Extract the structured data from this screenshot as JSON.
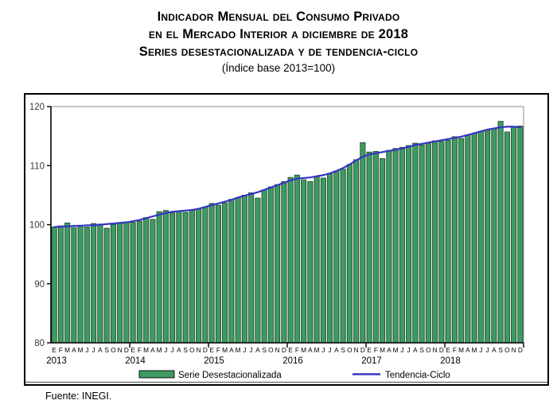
{
  "title": {
    "line1": "Indicador Mensual del Consumo Privado",
    "line2": "en el Mercado Interior a diciembre de 2018",
    "line3": "Series desestacionalizada y de tendencia-ciclo",
    "subtitle": "(Índice base 2013=100)"
  },
  "source": "Fuente: INEGI.",
  "chart_data": {
    "type": "bar",
    "title": "Indicador Mensual del Consumo Privado en el Mercado Interior a diciembre de 2018",
    "ylabel": "",
    "xlabel": "",
    "ylim": [
      80,
      120
    ],
    "yticks": [
      80,
      90,
      100,
      110,
      120
    ],
    "grid": false,
    "legend_position": "bottom",
    "month_labels": [
      "E",
      "F",
      "M",
      "A",
      "M",
      "J",
      "J",
      "A",
      "S",
      "O",
      "N",
      "D"
    ],
    "years": [
      "2013",
      "2014",
      "2015",
      "2016",
      "2017",
      "2018"
    ],
    "series": [
      {
        "name": "Serie Desestacionalizada",
        "type": "bar",
        "color": "#3E9A62",
        "border_color": "#16421F",
        "values": [
          99.6,
          99.8,
          100.3,
          99.5,
          99.9,
          99.6,
          100.2,
          100.1,
          99.4,
          100.0,
          100.2,
          100.4,
          100.4,
          100.6,
          101.2,
          100.9,
          102.2,
          102.4,
          102.0,
          102.3,
          102.1,
          102.4,
          102.7,
          103.0,
          103.6,
          103.3,
          103.7,
          104.3,
          104.6,
          105.0,
          105.4,
          104.5,
          105.9,
          106.4,
          106.8,
          107.3,
          108.0,
          108.4,
          107.6,
          107.3,
          108.2,
          107.9,
          108.6,
          109.1,
          109.4,
          110.2,
          111.0,
          113.9,
          112.3,
          112.4,
          111.2,
          112.6,
          112.9,
          113.1,
          113.4,
          113.8,
          113.5,
          113.9,
          114.2,
          114.1,
          114.3,
          114.9,
          114.6,
          115.2,
          115.4,
          115.8,
          116.0,
          116.3,
          117.5,
          115.7,
          116.6,
          116.7
        ]
      },
      {
        "name": "Tendencia-Ciclo",
        "type": "line",
        "color": "#3535C3",
        "values": [
          99.6,
          99.7,
          99.7,
          99.8,
          99.8,
          99.9,
          99.9,
          100.0,
          100.1,
          100.2,
          100.3,
          100.4,
          100.6,
          100.8,
          101.1,
          101.4,
          101.7,
          102.0,
          102.2,
          102.3,
          102.4,
          102.5,
          102.7,
          103.0,
          103.3,
          103.6,
          103.9,
          104.2,
          104.6,
          104.9,
          105.2,
          105.5,
          105.9,
          106.3,
          106.7,
          107.1,
          107.5,
          107.8,
          107.9,
          108.0,
          108.2,
          108.4,
          108.7,
          109.1,
          109.6,
          110.2,
          110.9,
          111.5,
          111.9,
          112.1,
          112.3,
          112.5,
          112.7,
          112.9,
          113.2,
          113.5,
          113.7,
          113.9,
          114.1,
          114.3,
          114.5,
          114.7,
          114.9,
          115.2,
          115.5,
          115.8,
          116.1,
          116.3,
          116.5,
          116.6,
          116.6,
          116.5
        ]
      }
    ]
  }
}
